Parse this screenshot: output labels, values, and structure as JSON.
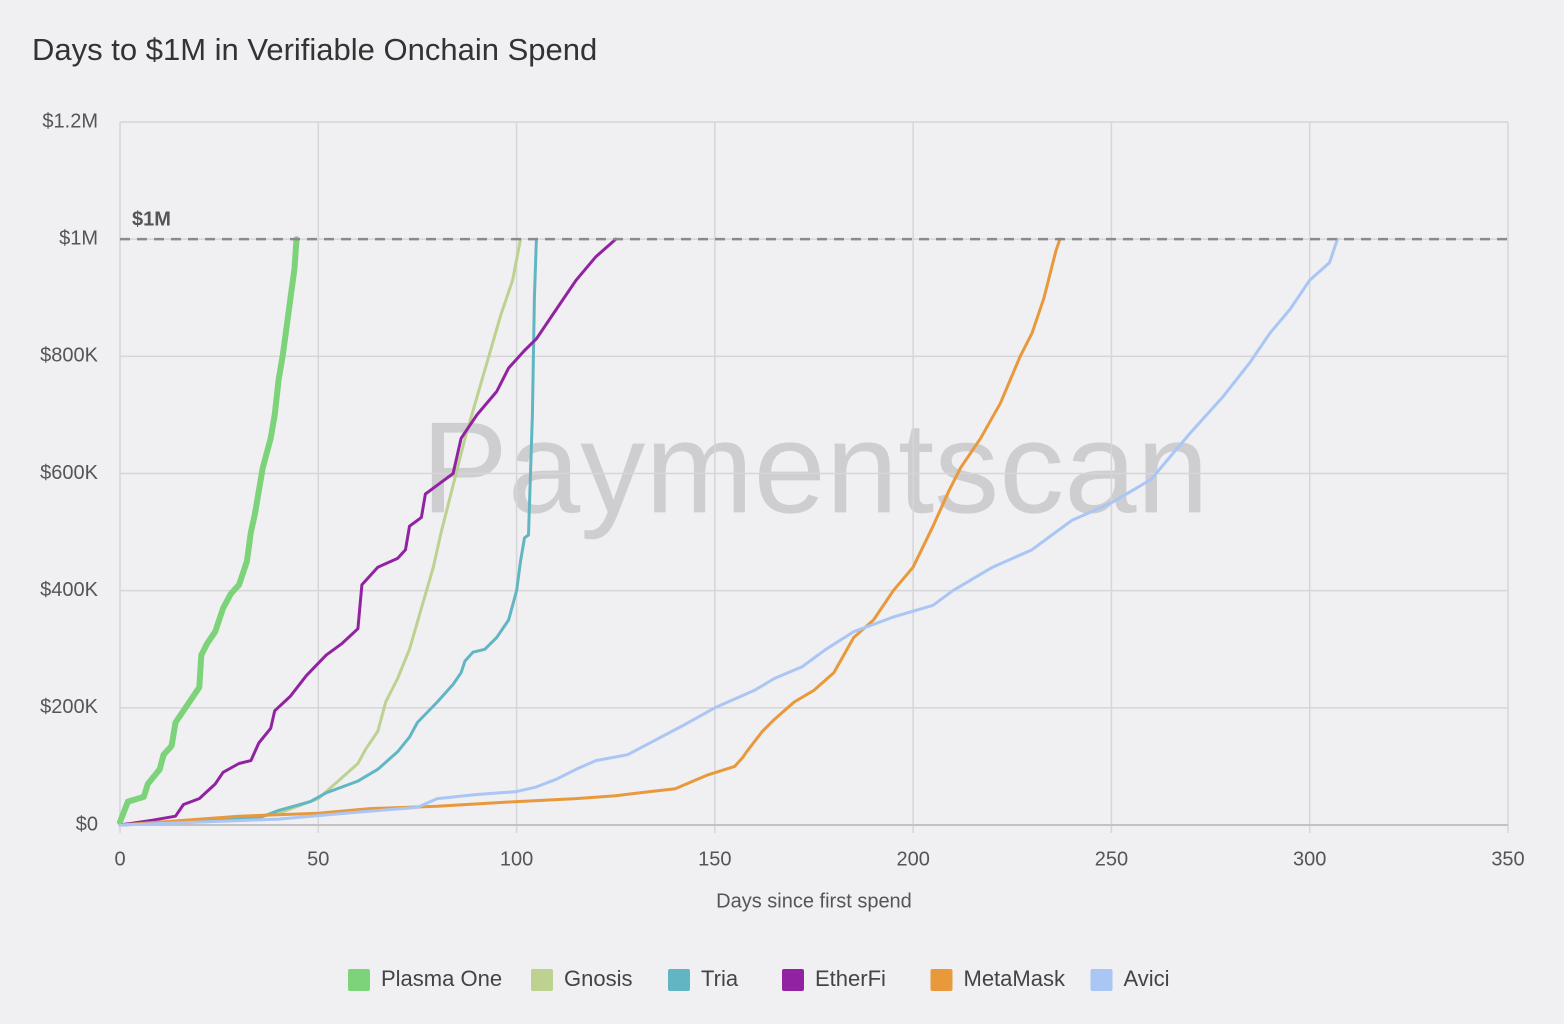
{
  "chart_data": {
    "type": "line",
    "title": "Days to $1M in Verifiable Onchain Spend",
    "watermark": "Paymentscan",
    "xlabel": "Days since first spend",
    "xlim": [
      0,
      350
    ],
    "xticks": [
      0,
      50,
      100,
      150,
      200,
      250,
      300,
      350
    ],
    "ylim": [
      0,
      1200000
    ],
    "yticks": [
      {
        "value": 0,
        "label": "$0"
      },
      {
        "value": 200000,
        "label": "$200K"
      },
      {
        "value": 400000,
        "label": "$400K"
      },
      {
        "value": 600000,
        "label": "$600K"
      },
      {
        "value": 800000,
        "label": "$800K"
      },
      {
        "value": 1000000,
        "label": "$1M"
      },
      {
        "value": 1200000,
        "label": "$1.2M"
      }
    ],
    "grid": true,
    "legend": "bottom",
    "reference_line": {
      "value": 1000000,
      "label": "$1M"
    },
    "series": [
      {
        "name": "Plasma One",
        "color": "#7dd37a",
        "x": [
          0,
          2,
          6,
          7,
          10,
          11,
          13,
          14,
          17,
          20,
          20.5,
          22,
          24,
          26,
          28,
          30,
          32,
          33,
          34,
          36,
          38,
          39,
          40,
          41,
          42,
          43,
          44,
          44.5
        ],
        "values": [
          5000,
          40000,
          48000,
          70000,
          95000,
          120000,
          135000,
          175000,
          205000,
          235000,
          290000,
          310000,
          330000,
          370000,
          395000,
          410000,
          450000,
          500000,
          530000,
          610000,
          660000,
          700000,
          760000,
          800000,
          850000,
          900000,
          950000,
          1000000
        ]
      },
      {
        "name": "Gnosis",
        "color": "#bdd190",
        "x": [
          0,
          30,
          40,
          50,
          55,
          60,
          62,
          65,
          67,
          70,
          73,
          76,
          79,
          81,
          84,
          87,
          90,
          93,
          96,
          99,
          101
        ],
        "values": [
          0,
          8000,
          20000,
          45000,
          75000,
          105000,
          130000,
          160000,
          210000,
          250000,
          300000,
          370000,
          440000,
          500000,
          580000,
          660000,
          730000,
          800000,
          870000,
          930000,
          1000000
        ]
      },
      {
        "name": "Tria",
        "color": "#62b6c4",
        "x": [
          0,
          35,
          40,
          48,
          52,
          60,
          65,
          70,
          73,
          75,
          80,
          84,
          86,
          87,
          89,
          92,
          95,
          98,
          100,
          101,
          102,
          103,
          104,
          104.5,
          105
        ],
        "values": [
          0,
          12000,
          25000,
          40000,
          55000,
          75000,
          95000,
          125000,
          150000,
          175000,
          210000,
          240000,
          260000,
          280000,
          295000,
          300000,
          320000,
          350000,
          400000,
          450000,
          490000,
          495000,
          700000,
          900000,
          1000000
        ]
      },
      {
        "name": "EtherFi",
        "color": "#9123a3",
        "x": [
          0,
          8,
          14,
          16,
          20,
          24,
          26,
          30,
          33,
          35,
          38,
          39,
          43,
          47,
          52,
          56,
          60,
          61,
          65,
          70,
          72,
          73,
          76,
          77,
          80,
          84,
          86,
          90,
          95,
          98,
          102,
          105,
          110,
          115,
          120,
          125
        ],
        "values": [
          0,
          8000,
          15000,
          35000,
          45000,
          70000,
          90000,
          105000,
          110000,
          140000,
          165000,
          195000,
          220000,
          255000,
          290000,
          310000,
          335000,
          410000,
          440000,
          455000,
          470000,
          510000,
          525000,
          565000,
          580000,
          600000,
          660000,
          700000,
          740000,
          780000,
          810000,
          830000,
          880000,
          930000,
          970000,
          1000000
        ]
      },
      {
        "name": "MetaMask",
        "color": "#e8993b",
        "x": [
          0,
          30,
          50,
          63,
          80,
          100,
          115,
          125,
          135,
          140,
          148,
          155,
          157,
          158,
          162,
          165,
          170,
          175,
          180,
          185,
          190,
          195,
          200,
          205,
          209,
          212,
          217,
          222,
          227,
          230,
          233,
          236,
          237
        ],
        "values": [
          0,
          15000,
          20000,
          28000,
          32000,
          40000,
          45000,
          50000,
          58000,
          62000,
          85000,
          100000,
          115000,
          125000,
          160000,
          180000,
          210000,
          230000,
          260000,
          320000,
          350000,
          400000,
          440000,
          510000,
          570000,
          610000,
          660000,
          720000,
          800000,
          840000,
          900000,
          980000,
          1000000
        ]
      },
      {
        "name": "Avici",
        "color": "#a9c6f5",
        "x": [
          0,
          40,
          60,
          75,
          80,
          90,
          100,
          105,
          110,
          115,
          120,
          128,
          135,
          142,
          150,
          160,
          165,
          172,
          175,
          178,
          185,
          195,
          205,
          210,
          220,
          230,
          235,
          240,
          250,
          260,
          265,
          270,
          278,
          285,
          290,
          295,
          300,
          305,
          307
        ],
        "values": [
          0,
          10000,
          22000,
          30000,
          45000,
          52000,
          57000,
          65000,
          78000,
          95000,
          110000,
          120000,
          145000,
          170000,
          200000,
          230000,
          250000,
          270000,
          285000,
          300000,
          330000,
          355000,
          375000,
          400000,
          440000,
          470000,
          495000,
          520000,
          550000,
          590000,
          630000,
          670000,
          730000,
          790000,
          840000,
          880000,
          930000,
          960000,
          1000000
        ]
      }
    ]
  }
}
